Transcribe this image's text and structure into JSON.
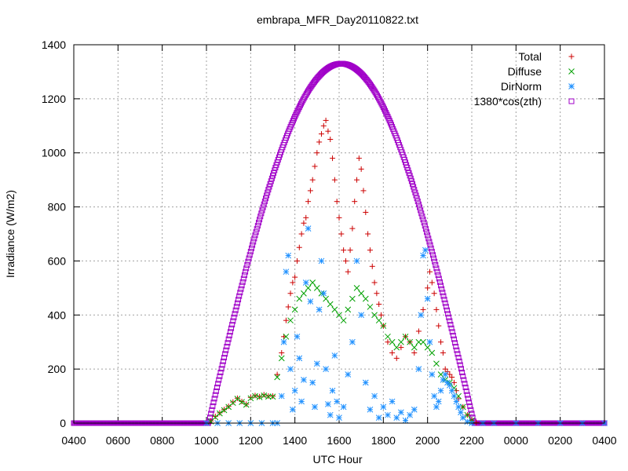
{
  "chart_data": {
    "type": "scatter",
    "title": "embrapa_MFR_Day20110822.txt",
    "xlabel": "UTC Hour",
    "ylabel": "Irradiance (W/m2)",
    "xlim": [
      4,
      28
    ],
    "ylim": [
      0,
      1400
    ],
    "x_ticks": [
      {
        "value": 4,
        "label": "0400"
      },
      {
        "value": 6,
        "label": "0600"
      },
      {
        "value": 8,
        "label": "0800"
      },
      {
        "value": 10,
        "label": "1000"
      },
      {
        "value": 12,
        "label": "1200"
      },
      {
        "value": 14,
        "label": "1400"
      },
      {
        "value": 16,
        "label": "1600"
      },
      {
        "value": 18,
        "label": "1800"
      },
      {
        "value": 20,
        "label": "2000"
      },
      {
        "value": 22,
        "label": "2200"
      },
      {
        "value": 24,
        "label": "0000"
      },
      {
        "value": 26,
        "label": "0200"
      },
      {
        "value": 28,
        "label": "0400"
      }
    ],
    "y_ticks": [
      {
        "value": 0,
        "label": "0"
      },
      {
        "value": 200,
        "label": "200"
      },
      {
        "value": 400,
        "label": "400"
      },
      {
        "value": 600,
        "label": "600"
      },
      {
        "value": 800,
        "label": "800"
      },
      {
        "value": 1000,
        "label": "1000"
      },
      {
        "value": 1200,
        "label": "1200"
      },
      {
        "value": 1400,
        "label": "1400"
      }
    ],
    "grid": true,
    "legend_position": "top-right",
    "series": [
      {
        "name": "Total",
        "color": "#cc0000",
        "marker": "plus",
        "points": [
          [
            10.2,
            8
          ],
          [
            10.4,
            25
          ],
          [
            10.6,
            38
          ],
          [
            10.8,
            50
          ],
          [
            11.0,
            62
          ],
          [
            11.2,
            78
          ],
          [
            11.4,
            92
          ],
          [
            11.6,
            80
          ],
          [
            11.8,
            70
          ],
          [
            12.0,
            95
          ],
          [
            12.2,
            102
          ],
          [
            12.4,
            98
          ],
          [
            12.6,
            105
          ],
          [
            12.8,
            100
          ],
          [
            13.0,
            100
          ],
          [
            13.2,
            180
          ],
          [
            13.4,
            260
          ],
          [
            13.5,
            320
          ],
          [
            13.6,
            380
          ],
          [
            13.7,
            430
          ],
          [
            13.8,
            480
          ],
          [
            13.9,
            520
          ],
          [
            14.0,
            540
          ],
          [
            14.1,
            600
          ],
          [
            14.2,
            650
          ],
          [
            14.3,
            700
          ],
          [
            14.4,
            740
          ],
          [
            14.5,
            760
          ],
          [
            14.6,
            820
          ],
          [
            14.7,
            860
          ],
          [
            14.8,
            900
          ],
          [
            14.9,
            950
          ],
          [
            15.0,
            1000
          ],
          [
            15.1,
            1040
          ],
          [
            15.2,
            1070
          ],
          [
            15.3,
            1100
          ],
          [
            15.4,
            1120
          ],
          [
            15.5,
            1080
          ],
          [
            15.6,
            1050
          ],
          [
            15.7,
            980
          ],
          [
            15.8,
            900
          ],
          [
            15.9,
            820
          ],
          [
            16.0,
            760
          ],
          [
            16.1,
            700
          ],
          [
            16.2,
            640
          ],
          [
            16.3,
            600
          ],
          [
            16.4,
            560
          ],
          [
            16.5,
            640
          ],
          [
            16.6,
            720
          ],
          [
            16.7,
            820
          ],
          [
            16.8,
            900
          ],
          [
            16.9,
            980
          ],
          [
            17.0,
            940
          ],
          [
            17.1,
            860
          ],
          [
            17.2,
            780
          ],
          [
            17.3,
            700
          ],
          [
            17.4,
            640
          ],
          [
            17.5,
            580
          ],
          [
            17.6,
            520
          ],
          [
            17.7,
            480
          ],
          [
            17.8,
            440
          ],
          [
            17.9,
            400
          ],
          [
            18.0,
            360
          ],
          [
            18.2,
            300
          ],
          [
            18.4,
            260
          ],
          [
            18.6,
            240
          ],
          [
            18.8,
            280
          ],
          [
            19.0,
            320
          ],
          [
            19.2,
            300
          ],
          [
            19.4,
            260
          ],
          [
            19.6,
            340
          ],
          [
            19.8,
            420
          ],
          [
            20.0,
            500
          ],
          [
            20.1,
            560
          ],
          [
            20.2,
            520
          ],
          [
            20.3,
            480
          ],
          [
            20.4,
            420
          ],
          [
            20.5,
            360
          ],
          [
            20.6,
            300
          ],
          [
            20.7,
            260
          ],
          [
            20.8,
            200
          ],
          [
            20.9,
            190
          ],
          [
            21.0,
            180
          ],
          [
            21.1,
            170
          ],
          [
            21.2,
            150
          ],
          [
            21.3,
            120
          ],
          [
            21.4,
            90
          ],
          [
            21.6,
            60
          ],
          [
            21.8,
            30
          ],
          [
            22.0,
            10
          ],
          [
            22.2,
            2
          ]
        ]
      },
      {
        "name": "Diffuse",
        "color": "#00a000",
        "marker": "cross",
        "points": [
          [
            10.2,
            6
          ],
          [
            10.4,
            22
          ],
          [
            10.6,
            36
          ],
          [
            10.8,
            48
          ],
          [
            11.0,
            60
          ],
          [
            11.2,
            75
          ],
          [
            11.4,
            90
          ],
          [
            11.6,
            78
          ],
          [
            11.8,
            68
          ],
          [
            12.0,
            92
          ],
          [
            12.2,
            100
          ],
          [
            12.4,
            96
          ],
          [
            12.6,
            102
          ],
          [
            12.8,
            98
          ],
          [
            13.0,
            98
          ],
          [
            13.2,
            170
          ],
          [
            13.4,
            240
          ],
          [
            13.6,
            320
          ],
          [
            13.8,
            380
          ],
          [
            14.0,
            420
          ],
          [
            14.2,
            460
          ],
          [
            14.4,
            480
          ],
          [
            14.6,
            500
          ],
          [
            14.8,
            520
          ],
          [
            15.0,
            500
          ],
          [
            15.2,
            480
          ],
          [
            15.4,
            460
          ],
          [
            15.6,
            440
          ],
          [
            15.8,
            420
          ],
          [
            16.0,
            400
          ],
          [
            16.2,
            380
          ],
          [
            16.4,
            420
          ],
          [
            16.6,
            460
          ],
          [
            16.8,
            500
          ],
          [
            17.0,
            480
          ],
          [
            17.2,
            460
          ],
          [
            17.4,
            430
          ],
          [
            17.6,
            400
          ],
          [
            17.8,
            380
          ],
          [
            18.0,
            360
          ],
          [
            18.2,
            320
          ],
          [
            18.4,
            300
          ],
          [
            18.6,
            280
          ],
          [
            18.8,
            300
          ],
          [
            19.0,
            320
          ],
          [
            19.2,
            300
          ],
          [
            19.4,
            280
          ],
          [
            19.6,
            300
          ],
          [
            19.8,
            300
          ],
          [
            20.0,
            280
          ],
          [
            20.2,
            260
          ],
          [
            20.4,
            220
          ],
          [
            20.6,
            180
          ],
          [
            20.8,
            160
          ],
          [
            21.0,
            150
          ],
          [
            21.2,
            130
          ],
          [
            21.4,
            100
          ],
          [
            21.6,
            60
          ],
          [
            21.8,
            30
          ],
          [
            22.0,
            10
          ]
        ]
      },
      {
        "name": "DirNorm",
        "color": "#1e90ff",
        "marker": "star",
        "points": [
          [
            10.0,
            0
          ],
          [
            10.5,
            0
          ],
          [
            11.0,
            0
          ],
          [
            11.5,
            0
          ],
          [
            12.0,
            0
          ],
          [
            12.5,
            0
          ],
          [
            13.0,
            0
          ],
          [
            13.2,
            0
          ],
          [
            13.4,
            100
          ],
          [
            13.5,
            300
          ],
          [
            13.6,
            560
          ],
          [
            13.7,
            620
          ],
          [
            13.8,
            200
          ],
          [
            13.9,
            50
          ],
          [
            14.0,
            120
          ],
          [
            14.1,
            320
          ],
          [
            14.2,
            240
          ],
          [
            14.3,
            80
          ],
          [
            14.4,
            160
          ],
          [
            14.5,
            520
          ],
          [
            14.6,
            720
          ],
          [
            14.7,
            450
          ],
          [
            14.8,
            150
          ],
          [
            14.9,
            60
          ],
          [
            15.0,
            220
          ],
          [
            15.1,
            420
          ],
          [
            15.2,
            600
          ],
          [
            15.3,
            480
          ],
          [
            15.4,
            200
          ],
          [
            15.5,
            70
          ],
          [
            15.6,
            30
          ],
          [
            15.7,
            120
          ],
          [
            15.8,
            250
          ],
          [
            15.9,
            80
          ],
          [
            16.0,
            20
          ],
          [
            16.2,
            60
          ],
          [
            16.4,
            180
          ],
          [
            16.6,
            300
          ],
          [
            16.8,
            600
          ],
          [
            17.0,
            400
          ],
          [
            17.2,
            150
          ],
          [
            17.4,
            50
          ],
          [
            17.6,
            100
          ],
          [
            17.8,
            20
          ],
          [
            18.0,
            60
          ],
          [
            18.2,
            30
          ],
          [
            18.4,
            80
          ],
          [
            18.6,
            20
          ],
          [
            18.8,
            40
          ],
          [
            19.0,
            10
          ],
          [
            19.2,
            30
          ],
          [
            19.4,
            50
          ],
          [
            19.6,
            200
          ],
          [
            19.7,
            400
          ],
          [
            19.8,
            620
          ],
          [
            19.9,
            640
          ],
          [
            20.0,
            460
          ],
          [
            20.1,
            300
          ],
          [
            20.2,
            180
          ],
          [
            20.3,
            100
          ],
          [
            20.4,
            60
          ],
          [
            20.5,
            80
          ],
          [
            20.6,
            120
          ],
          [
            20.7,
            160
          ],
          [
            20.8,
            180
          ],
          [
            20.9,
            150
          ],
          [
            21.0,
            140
          ],
          [
            21.1,
            120
          ],
          [
            21.2,
            100
          ],
          [
            21.3,
            80
          ],
          [
            21.4,
            60
          ],
          [
            21.5,
            40
          ],
          [
            21.6,
            20
          ],
          [
            21.8,
            5
          ],
          [
            22.0,
            0
          ],
          [
            22.5,
            0
          ],
          [
            23.0,
            0
          ],
          [
            24.0,
            0
          ],
          [
            25.0,
            0
          ],
          [
            26.0,
            0
          ],
          [
            27.0,
            0
          ],
          [
            28.0,
            0
          ]
        ]
      },
      {
        "name": "1380*cos(zth)",
        "color": "#a000c8",
        "marker": "square",
        "curve": {
          "peak": 1330,
          "center": 16.1,
          "half_width": 6.0
        }
      }
    ]
  }
}
